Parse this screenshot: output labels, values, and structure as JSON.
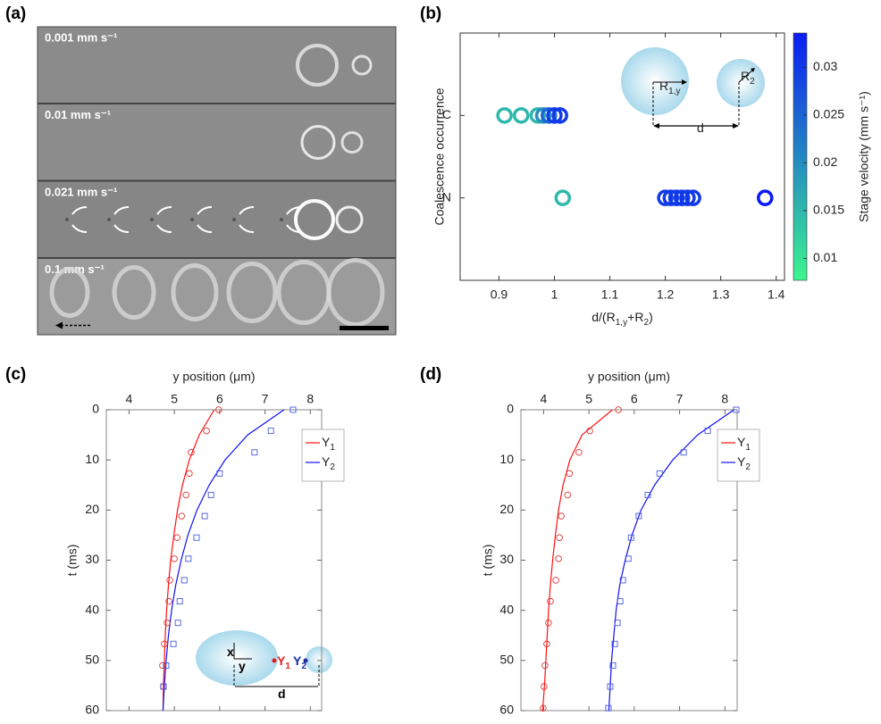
{
  "panel_a": {
    "label": "(a)",
    "speeds": [
      "0.001 mm s⁻¹",
      "0.01 mm s⁻¹",
      "0.021 mm s⁻¹",
      "0.1 mm s⁻¹"
    ]
  },
  "chart_data": [
    {
      "type": "scatter",
      "label": "(b)",
      "xlabel": [
        "d/(R",
        "1,y",
        "+R",
        "2",
        ")"
      ],
      "ylabel": "Coalescence occurrence",
      "xlim": [
        0.83,
        1.415
      ],
      "xticks": [
        0.9,
        1,
        1.1,
        1.2,
        1.3,
        1.4
      ],
      "categories": [
        "N",
        "C"
      ],
      "x": [
        0.91,
        0.94,
        0.97,
        0.98,
        0.99,
        1.0,
        1.01,
        1.015,
        1.2,
        1.21,
        1.22,
        1.23,
        1.24,
        1.25,
        1.38
      ],
      "y": [
        "C",
        "C",
        "C",
        "C",
        "C",
        "C",
        "C",
        "N",
        "N",
        "N",
        "N",
        "N",
        "N",
        "N",
        "N"
      ],
      "c": [
        0.015,
        0.015,
        0.015,
        0.02,
        0.025,
        0.03,
        0.03,
        0.015,
        0.03,
        0.03,
        0.03,
        0.03,
        0.03,
        0.03,
        0.034
      ],
      "colormap": [
        "#3cf58f",
        "#0a1cf5"
      ],
      "clim": [
        0.0077,
        0.0336
      ],
      "cticks": [
        0.01,
        0.015,
        0.02,
        0.025,
        0.03
      ],
      "clabel": "Stage velocity (mm s⁻¹)",
      "annotations": [
        [
          "R",
          "1,y"
        ],
        [
          "R",
          "2"
        ],
        [
          "d"
        ]
      ]
    },
    {
      "type": "line",
      "label": "(c)",
      "xlabel": "y position (μm)",
      "ylabel": "t (ms)",
      "xlim": [
        3.5,
        8.25
      ],
      "xticks": [
        4,
        5,
        6,
        7,
        8
      ],
      "ylim": [
        0,
        60
      ],
      "yticks": [
        0,
        10,
        20,
        30,
        40,
        50,
        60
      ],
      "y_reversed": true,
      "x_axis": "top",
      "legend": "upper right",
      "series": [
        {
          "name": [
            "Y",
            "1"
          ],
          "color": "#ff1010",
          "x": [
            5.88,
            5.55,
            5.33,
            5.18,
            5.07,
            4.99,
            4.92,
            4.87,
            4.83,
            4.8,
            4.78,
            4.76,
            4.75
          ],
          "y": [
            0,
            5,
            10,
            15,
            20,
            25,
            30,
            35,
            40,
            45,
            50,
            55,
            60
          ]
        },
        {
          "name": [
            "Y",
            "2"
          ],
          "color": "#1010f0",
          "x": [
            7.42,
            6.62,
            6.12,
            5.77,
            5.5,
            5.3,
            5.15,
            5.03,
            4.94,
            4.87,
            4.82,
            4.78,
            4.75
          ],
          "y": [
            0,
            5,
            10,
            15,
            20,
            25,
            30,
            35,
            40,
            45,
            50,
            55,
            60
          ]
        },
        {
          "color": "#e03535",
          "marker": "circle",
          "x": [
            5.98,
            5.71,
            5.37,
            5.33,
            5.26,
            5.16,
            5.06,
            5.0,
            4.9,
            4.88,
            4.84,
            4.78,
            4.74,
            4.76
          ],
          "y": [
            0,
            4.2,
            8.5,
            12.7,
            17,
            21.2,
            25.5,
            29.7,
            34,
            38.2,
            42.5,
            46.7,
            51,
            55.2
          ]
        },
        {
          "color": "#4a5ae0",
          "marker": "square",
          "x": [
            7.62,
            7.13,
            6.77,
            6.0,
            5.81,
            5.67,
            5.49,
            5.31,
            5.22,
            5.12,
            5.08,
            4.98,
            4.82,
            4.76
          ],
          "y": [
            0,
            4.2,
            8.5,
            12.7,
            17,
            21.2,
            25.5,
            29.7,
            34,
            38.2,
            42.5,
            46.7,
            51,
            55.2
          ]
        }
      ],
      "annotations": [
        [
          "x"
        ],
        [
          "y"
        ],
        [
          "Y",
          "1"
        ],
        [
          "Y",
          "2"
        ],
        [
          "d"
        ]
      ]
    },
    {
      "type": "line",
      "label": "(d)",
      "xlabel": "y position (μm)",
      "ylabel": "t (ms)",
      "xlim": [
        3.5,
        8.27
      ],
      "xticks": [
        4,
        5,
        6,
        7,
        8
      ],
      "ylim": [
        0,
        60
      ],
      "yticks": [
        0,
        10,
        20,
        30,
        40,
        50,
        60
      ],
      "y_reversed": true,
      "x_axis": "top",
      "legend": "upper right",
      "series": [
        {
          "name": [
            "Y",
            "1"
          ],
          "color": "#ff1010",
          "x": [
            5.52,
            4.85,
            4.58,
            4.43,
            4.33,
            4.26,
            4.2,
            4.15,
            4.11,
            4.08,
            4.05,
            4.02,
            3.98
          ],
          "y": [
            0,
            5,
            10,
            15,
            20,
            25,
            30,
            35,
            40,
            45,
            50,
            55,
            60
          ]
        },
        {
          "name": [
            "Y",
            "2"
          ],
          "color": "#1010f0",
          "x": [
            8.2,
            7.4,
            6.85,
            6.45,
            6.15,
            5.95,
            5.8,
            5.68,
            5.6,
            5.55,
            5.5,
            5.47,
            5.44
          ],
          "y": [
            0,
            5,
            10,
            15,
            20,
            25,
            30,
            35,
            40,
            45,
            50,
            55,
            60
          ]
        },
        {
          "color": "#e03535",
          "marker": "circle",
          "x": [
            5.65,
            5.02,
            4.78,
            4.57,
            4.53,
            4.39,
            4.35,
            4.33,
            4.27,
            4.15,
            4.11,
            4.07,
            4.03,
            4.01,
            3.99
          ],
          "y": [
            0,
            4.2,
            8.5,
            12.7,
            17,
            21.2,
            25.5,
            29.7,
            34,
            38.2,
            42.5,
            46.7,
            51,
            55.2,
            59.5
          ]
        },
        {
          "color": "#4a5ae0",
          "marker": "square",
          "x": [
            8.25,
            7.62,
            7.09,
            6.56,
            6.3,
            6.1,
            5.93,
            5.87,
            5.75,
            5.69,
            5.63,
            5.57,
            5.53,
            5.47,
            5.43
          ],
          "y": [
            0,
            4.2,
            8.5,
            12.7,
            17,
            21.2,
            25.5,
            29.7,
            34,
            38.2,
            42.5,
            46.7,
            51,
            55.2,
            59.5
          ]
        }
      ]
    }
  ]
}
